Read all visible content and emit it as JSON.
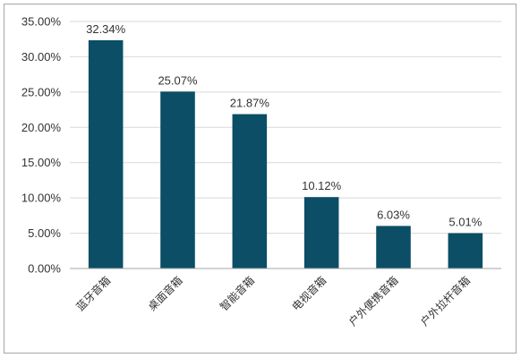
{
  "chart_data": {
    "type": "bar",
    "categories": [
      "蓝牙音箱",
      "桌面音箱",
      "智能音箱",
      "电视音箱",
      "户外便携音箱",
      "户外拉杆音箱"
    ],
    "values": [
      32.34,
      25.07,
      21.87,
      10.12,
      6.03,
      5.01
    ],
    "data_labels": [
      "32.34%",
      "25.07%",
      "21.87%",
      "10.12%",
      "6.03%",
      "5.01%"
    ],
    "ylim": [
      0,
      35
    ],
    "yticks": [
      0,
      5,
      10,
      15,
      20,
      25,
      30,
      35
    ],
    "ytick_labels": [
      "0.00%",
      "5.00%",
      "10.00%",
      "15.00%",
      "20.00%",
      "25.00%",
      "30.00%",
      "35.00%"
    ],
    "grid": true,
    "legend": "none",
    "bar_color": "#0b4e66",
    "grid_color": "#d9d9d9",
    "axis_color": "#a6a6a6"
  }
}
